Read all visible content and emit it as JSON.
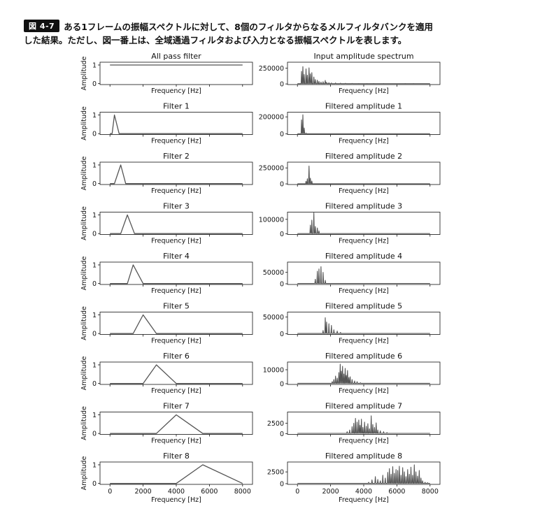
{
  "caption": {
    "figure_label": "図 4-7",
    "line1": "ある1フレームの振幅スペクトルに対して、8個のフィルタからなるメルフィルタバンクを適用",
    "line2": "した結果。ただし、図一番上は、全域通過フィルタおよび入力となる振幅スペクトルを表します。"
  },
  "colors": {
    "line": "#555555",
    "axes": "#111111"
  },
  "chart_data": [
    {
      "type": "line",
      "panel": "left-1",
      "title": "All pass filter",
      "xlabel": "Frequency [Hz]",
      "ylabel": "Amplitude",
      "xlim": [
        -600,
        8600
      ],
      "ylim": [
        -0.05,
        1.15
      ],
      "xticks": [
        0,
        2000,
        4000,
        6000,
        8000
      ],
      "xtick_labels_shown": false,
      "yticks": [
        0,
        1
      ],
      "ytick_labels": [
        "0",
        "1"
      ],
      "x": [
        0,
        8000
      ],
      "y": [
        1,
        1
      ]
    },
    {
      "type": "line",
      "panel": "right-1",
      "title": "Input amplitude spectrum",
      "xlabel": "Frequency [Hz]",
      "xlim": [
        -600,
        8600
      ],
      "ylim": [
        -10000,
        345000
      ],
      "xticks": [
        0,
        2000,
        4000,
        6000,
        8000
      ],
      "xtick_labels_shown": false,
      "yticks": [
        0,
        250000
      ],
      "ytick_labels": [
        "0",
        "250000"
      ],
      "peaks": [
        [
          250,
          200000
        ],
        [
          330,
          275000
        ],
        [
          410,
          150000
        ],
        [
          520,
          240000
        ],
        [
          600,
          140000
        ],
        [
          700,
          255000
        ],
        [
          780,
          160000
        ],
        [
          870,
          180000
        ],
        [
          990,
          110000
        ],
        [
          1080,
          70000
        ],
        [
          1200,
          60000
        ],
        [
          1300,
          40000
        ],
        [
          1420,
          30000
        ],
        [
          1550,
          35000
        ],
        [
          1680,
          55000
        ],
        [
          1760,
          25000
        ],
        [
          1900,
          20000
        ],
        [
          2050,
          15000
        ],
        [
          2300,
          15000
        ],
        [
          2600,
          12000
        ],
        [
          2900,
          10000
        ],
        [
          3300,
          8000
        ],
        [
          3700,
          6000
        ],
        [
          4200,
          5000
        ],
        [
          4600,
          5000
        ],
        [
          5200,
          5000
        ],
        [
          5800,
          4500
        ],
        [
          6500,
          5000
        ],
        [
          7000,
          5000
        ],
        [
          7500,
          4000
        ]
      ],
      "noise_floor": 4000,
      "x_range": [
        0,
        8000
      ]
    },
    {
      "type": "line",
      "panel": "left-2",
      "title": "Filter 1",
      "xlabel": "Frequency [Hz]",
      "ylabel": "Amplitude",
      "xlim": [
        -600,
        8600
      ],
      "ylim": [
        -0.05,
        1.15
      ],
      "xticks": [
        0,
        2000,
        4000,
        6000,
        8000
      ],
      "xtick_labels_shown": false,
      "yticks": [
        0,
        1
      ],
      "ytick_labels": [
        "0",
        "1"
      ],
      "x": [
        0,
        130,
        270,
        550,
        8000
      ],
      "y": [
        0,
        0,
        1,
        0,
        0
      ]
    },
    {
      "type": "line",
      "panel": "right-2",
      "title": "Filtered amplitude 1",
      "xlabel": "Frequency [Hz]",
      "xlim": [
        -600,
        8600
      ],
      "ylim": [
        -8000,
        255000
      ],
      "xticks": [
        0,
        2000,
        4000,
        6000,
        8000
      ],
      "xtick_labels_shown": false,
      "yticks": [
        0,
        200000
      ],
      "ytick_labels": [
        "0",
        "200000"
      ],
      "peaks": [
        [
          250,
          165000
        ],
        [
          330,
          225000
        ],
        [
          410,
          70000
        ],
        [
          520,
          10000
        ]
      ],
      "noise_floor": 1500,
      "x_range": [
        0,
        8000
      ]
    },
    {
      "type": "line",
      "panel": "left-3",
      "title": "Filter 2",
      "xlabel": "Frequency [Hz]",
      "ylabel": "Amplitude",
      "xlim": [
        -600,
        8600
      ],
      "ylim": [
        -0.05,
        1.15
      ],
      "xticks": [
        0,
        2000,
        4000,
        6000,
        8000
      ],
      "xtick_labels_shown": false,
      "yticks": [
        0,
        1
      ],
      "ytick_labels": [
        "0",
        "1"
      ],
      "x": [
        0,
        270,
        650,
        950,
        8000
      ],
      "y": [
        0,
        0,
        1,
        0,
        0
      ]
    },
    {
      "type": "line",
      "panel": "right-3",
      "title": "Filtered amplitude 2",
      "xlabel": "Frequency [Hz]",
      "xlim": [
        -600,
        8600
      ],
      "ylim": [
        -10000,
        340000
      ],
      "xticks": [
        0,
        2000,
        4000,
        6000,
        8000
      ],
      "xtick_labels_shown": false,
      "yticks": [
        0,
        250000
      ],
      "ytick_labels": [
        "0",
        "250000"
      ],
      "peaks": [
        [
          520,
          40000
        ],
        [
          600,
          80000
        ],
        [
          700,
          280000
        ],
        [
          780,
          90000
        ],
        [
          870,
          45000
        ]
      ],
      "noise_floor": 2000,
      "x_range": [
        0,
        8000
      ]
    },
    {
      "type": "line",
      "panel": "left-4",
      "title": "Filter 3",
      "xlabel": "Frequency [Hz]",
      "ylabel": "Amplitude",
      "xlim": [
        -600,
        8600
      ],
      "ylim": [
        -0.05,
        1.15
      ],
      "xticks": [
        0,
        2000,
        4000,
        6000,
        8000
      ],
      "xtick_labels_shown": false,
      "yticks": [
        0,
        1
      ],
      "ytick_labels": [
        "0",
        "1"
      ],
      "x": [
        0,
        650,
        1050,
        1480,
        8000
      ],
      "y": [
        0,
        0,
        1,
        0,
        0
      ]
    },
    {
      "type": "line",
      "panel": "right-4",
      "title": "Filtered amplitude 3",
      "xlabel": "Frequency [Hz]",
      "xlim": [
        -600,
        8600
      ],
      "ylim": [
        -5000,
        150000
      ],
      "xticks": [
        0,
        2000,
        4000,
        6000,
        8000
      ],
      "xtick_labels_shown": false,
      "yticks": [
        0,
        100000
      ],
      "ytick_labels": [
        "0",
        "100000"
      ],
      "peaks": [
        [
          780,
          60000
        ],
        [
          870,
          95000
        ],
        [
          990,
          145000
        ],
        [
          1080,
          50000
        ],
        [
          1200,
          40000
        ],
        [
          1300,
          20000
        ]
      ],
      "noise_floor": 1500,
      "x_range": [
        0,
        8000
      ]
    },
    {
      "type": "line",
      "panel": "left-5",
      "title": "Filter 4",
      "xlabel": "Frequency [Hz]",
      "ylabel": "Amplitude",
      "xlim": [
        -600,
        8600
      ],
      "ylim": [
        -0.05,
        1.15
      ],
      "xticks": [
        0,
        2000,
        4000,
        6000,
        8000
      ],
      "xtick_labels_shown": false,
      "yticks": [
        0,
        1
      ],
      "ytick_labels": [
        "0",
        "1"
      ],
      "x": [
        0,
        1050,
        1400,
        2000,
        8000
      ],
      "y": [
        0,
        0,
        1,
        0,
        0
      ]
    },
    {
      "type": "line",
      "panel": "right-5",
      "title": "Filtered amplitude 4",
      "xlabel": "Frequency [Hz]",
      "xlim": [
        -600,
        8600
      ],
      "ylim": [
        -3000,
        95000
      ],
      "xticks": [
        0,
        2000,
        4000,
        6000,
        8000
      ],
      "xtick_labels_shown": false,
      "yticks": [
        0,
        50000
      ],
      "ytick_labels": [
        "0",
        "50000"
      ],
      "peaks": [
        [
          1080,
          20000
        ],
        [
          1200,
          55000
        ],
        [
          1300,
          65000
        ],
        [
          1420,
          75000
        ],
        [
          1550,
          50000
        ],
        [
          1680,
          15000
        ]
      ],
      "noise_floor": 1500,
      "x_range": [
        0,
        8000
      ]
    },
    {
      "type": "line",
      "panel": "left-6",
      "title": "Filter 5",
      "xlabel": "Frequency [Hz]",
      "ylabel": "Amplitude",
      "xlim": [
        -600,
        8600
      ],
      "ylim": [
        -0.05,
        1.15
      ],
      "xticks": [
        0,
        2000,
        4000,
        6000,
        8000
      ],
      "xtick_labels_shown": false,
      "yticks": [
        0,
        1
      ],
      "ytick_labels": [
        "0",
        "1"
      ],
      "x": [
        0,
        1400,
        2000,
        2800,
        8000
      ],
      "y": [
        0,
        0,
        1,
        0,
        0
      ]
    },
    {
      "type": "line",
      "panel": "right-6",
      "title": "Filtered amplitude 5",
      "xlabel": "Frequency [Hz]",
      "xlim": [
        -600,
        8600
      ],
      "ylim": [
        -2000,
        65000
      ],
      "xticks": [
        0,
        2000,
        4000,
        6000,
        8000
      ],
      "xtick_labels_shown": false,
      "yticks": [
        0,
        50000
      ],
      "ytick_labels": [
        "0",
        "50000"
      ],
      "peaks": [
        [
          1550,
          10000
        ],
        [
          1680,
          48000
        ],
        [
          1760,
          35000
        ],
        [
          1900,
          30000
        ],
        [
          2050,
          25000
        ],
        [
          2200,
          12000
        ],
        [
          2400,
          8000
        ],
        [
          2600,
          4000
        ]
      ],
      "noise_floor": 1000,
      "x_range": [
        0,
        8000
      ]
    },
    {
      "type": "line",
      "panel": "left-7",
      "title": "Filter 6",
      "xlabel": "Frequency [Hz]",
      "ylabel": "Amplitude",
      "xlim": [
        -600,
        8600
      ],
      "ylim": [
        -0.05,
        1.15
      ],
      "xticks": [
        0,
        2000,
        4000,
        6000,
        8000
      ],
      "xtick_labels_shown": false,
      "yticks": [
        0,
        1
      ],
      "ytick_labels": [
        "0",
        "1"
      ],
      "x": [
        0,
        2000,
        2800,
        4000,
        8000
      ],
      "y": [
        0,
        0,
        1,
        0,
        0
      ]
    },
    {
      "type": "line",
      "panel": "right-7",
      "title": "Filtered amplitude 6",
      "xlabel": "Frequency [Hz]",
      "xlim": [
        -600,
        8600
      ],
      "ylim": [
        -500,
        15500
      ],
      "xticks": [
        0,
        2000,
        4000,
        6000,
        8000
      ],
      "xtick_labels_shown": false,
      "yticks": [
        0,
        10000
      ],
      "ytick_labels": [
        "0",
        "10000"
      ],
      "peaks": [
        [
          2100,
          1500
        ],
        [
          2200,
          3000
        ],
        [
          2300,
          5500
        ],
        [
          2400,
          4000
        ],
        [
          2500,
          8000
        ],
        [
          2580,
          14000
        ],
        [
          2650,
          9000
        ],
        [
          2720,
          12500
        ],
        [
          2800,
          7000
        ],
        [
          2880,
          11000
        ],
        [
          2950,
          6000
        ],
        [
          3020,
          9500
        ],
        [
          3100,
          4500
        ],
        [
          3180,
          5000
        ],
        [
          3300,
          3000
        ],
        [
          3450,
          2000
        ],
        [
          3600,
          1500
        ],
        [
          3800,
          700
        ]
      ],
      "noise_floor": 300,
      "x_range": [
        0,
        8000
      ]
    },
    {
      "type": "line",
      "panel": "left-8",
      "title": "Filter 7",
      "xlabel": "Frequency [Hz]",
      "ylabel": "Amplitude",
      "xlim": [
        -600,
        8600
      ],
      "ylim": [
        -0.05,
        1.15
      ],
      "xticks": [
        0,
        2000,
        4000,
        6000,
        8000
      ],
      "xtick_labels_shown": false,
      "yticks": [
        0,
        1
      ],
      "ytick_labels": [
        "0",
        "1"
      ],
      "x": [
        0,
        2800,
        4000,
        5600,
        8000
      ],
      "y": [
        0,
        0,
        1,
        0,
        0
      ]
    },
    {
      "type": "line",
      "panel": "right-8",
      "title": "Filtered amplitude 7",
      "xlabel": "Frequency [Hz]",
      "xlim": [
        -600,
        8600
      ],
      "ylim": [
        -150,
        5200
      ],
      "xticks": [
        0,
        2000,
        4000,
        6000,
        8000
      ],
      "xtick_labels_shown": false,
      "yticks": [
        0,
        2500
      ],
      "ytick_labels": [
        "0",
        "2500"
      ],
      "peaks": [
        [
          3000,
          500
        ],
        [
          3150,
          900
        ],
        [
          3300,
          1700
        ],
        [
          3400,
          2500
        ],
        [
          3500,
          3700
        ],
        [
          3600,
          2800
        ],
        [
          3700,
          3300
        ],
        [
          3780,
          2000
        ],
        [
          3860,
          3500
        ],
        [
          3950,
          1500
        ],
        [
          4050,
          2800
        ],
        [
          4150,
          1800
        ],
        [
          4250,
          2400
        ],
        [
          4350,
          1200
        ],
        [
          4450,
          4300
        ],
        [
          4550,
          2200
        ],
        [
          4650,
          1500
        ],
        [
          4750,
          2600
        ],
        [
          4850,
          900
        ],
        [
          5000,
          700
        ],
        [
          5200,
          500
        ],
        [
          5400,
          300
        ]
      ],
      "noise_floor": 100,
      "x_range": [
        0,
        8000
      ]
    },
    {
      "type": "line",
      "panel": "left-9",
      "title": "Filter 8",
      "xlabel": "Frequency [Hz]",
      "ylabel": "Amplitude",
      "xlim": [
        -600,
        8600
      ],
      "ylim": [
        -0.05,
        1.15
      ],
      "xticks": [
        0,
        2000,
        4000,
        6000,
        8000
      ],
      "xtick_labels_shown": true,
      "xtick_labels": [
        "0",
        "2000",
        "4000",
        "6000",
        "8000"
      ],
      "yticks": [
        0,
        1
      ],
      "ytick_labels": [
        "0",
        "1"
      ],
      "x": [
        0,
        4000,
        5600,
        8000
      ],
      "y": [
        0,
        0,
        1,
        0
      ]
    },
    {
      "type": "line",
      "panel": "right-9",
      "title": "Filtered amplitude 8",
      "xlabel": "Frequency [Hz]",
      "xlim": [
        -600,
        8600
      ],
      "ylim": [
        -150,
        4600
      ],
      "xticks": [
        0,
        2000,
        4000,
        6000,
        8000
      ],
      "xtick_labels_shown": true,
      "xtick_labels": [
        "0",
        "2000",
        "4000",
        "6000",
        "8000"
      ],
      "yticks": [
        0,
        2500
      ],
      "ytick_labels": [
        "0",
        "2500"
      ],
      "peaks": [
        [
          4300,
          300
        ],
        [
          4500,
          800
        ],
        [
          4700,
          1500
        ],
        [
          4850,
          900
        ],
        [
          5000,
          600
        ],
        [
          5150,
          1800
        ],
        [
          5300,
          1200
        ],
        [
          5450,
          2400
        ],
        [
          5550,
          3200
        ],
        [
          5650,
          2000
        ],
        [
          5750,
          3600
        ],
        [
          5850,
          2200
        ],
        [
          5950,
          3000
        ],
        [
          6050,
          2800
        ],
        [
          6150,
          3700
        ],
        [
          6250,
          1800
        ],
        [
          6350,
          3400
        ],
        [
          6450,
          2500
        ],
        [
          6550,
          1500
        ],
        [
          6650,
          3000
        ],
        [
          6750,
          2000
        ],
        [
          6850,
          3500
        ],
        [
          6950,
          1800
        ],
        [
          7050,
          4000
        ],
        [
          7150,
          2500
        ],
        [
          7250,
          1600
        ],
        [
          7350,
          2800
        ],
        [
          7450,
          1200
        ],
        [
          7550,
          600
        ],
        [
          7700,
          300
        ],
        [
          7850,
          200
        ]
      ],
      "noise_floor": 80,
      "x_range": [
        0,
        8000
      ]
    }
  ]
}
